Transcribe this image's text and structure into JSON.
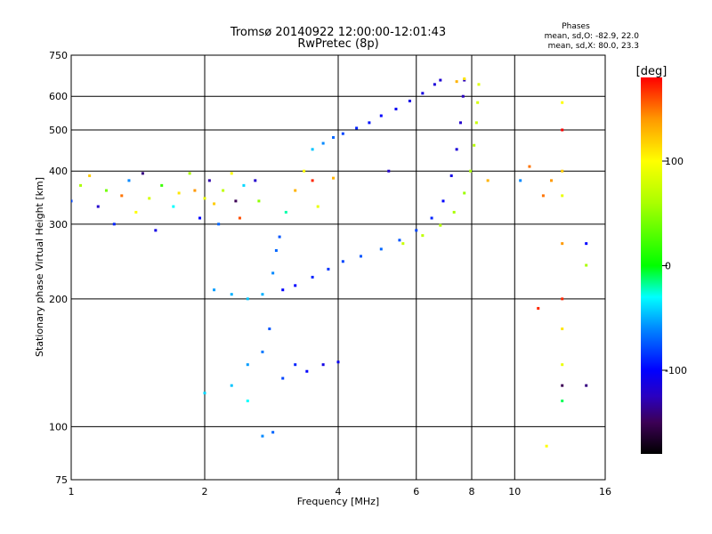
{
  "title_line1": "Tromsø 20140922 12:00:00-12:01:43",
  "title_line2": "RwPretec (8p)",
  "phases_box": {
    "heading": "Phases",
    "line_o": "mean, sd,O: -82.9, 22.0",
    "line_x": "mean, sd,X: 80.0, 23.3"
  },
  "colorbar": {
    "label": "[deg]",
    "range": [
      -180,
      180
    ],
    "ticks": [
      {
        "value": 100,
        "label": "100"
      },
      {
        "value": 0,
        "label": "0"
      },
      {
        "value": -100,
        "label": "-100"
      }
    ],
    "stops": [
      {
        "value": -180,
        "color": "#000000"
      },
      {
        "value": -150,
        "color": "#3c0055"
      },
      {
        "value": -125,
        "color": "#2a00c0"
      },
      {
        "value": -100,
        "color": "#0000ff"
      },
      {
        "value": -60,
        "color": "#0088ff"
      },
      {
        "value": -30,
        "color": "#00ffff"
      },
      {
        "value": 0,
        "color": "#00ff00"
      },
      {
        "value": 60,
        "color": "#aaff00"
      },
      {
        "value": 100,
        "color": "#ffff00"
      },
      {
        "value": 140,
        "color": "#ff9900"
      },
      {
        "value": 180,
        "color": "#ff0000"
      }
    ]
  },
  "chart_data": {
    "type": "scatter",
    "title": "Tromsø 20140922 12:00:00-12:01:43",
    "subtitle": "RwPretec (8p)",
    "xlabel": "Frequency [MHz]",
    "ylabel": "Stationary phase Virtual Height [km]",
    "x_scale": "log",
    "y_scale": "log",
    "xlim": [
      1,
      16
    ],
    "ylim": [
      75,
      750
    ],
    "grid": true,
    "x_ticks": [
      {
        "value": 1,
        "label": "1"
      },
      {
        "value": 2,
        "label": "2"
      },
      {
        "value": 4,
        "label": "4"
      },
      {
        "value": 6,
        "label": "6"
      },
      {
        "value": 8,
        "label": "8"
      },
      {
        "value": 10,
        "label": "10"
      },
      {
        "value": 16,
        "label": "16"
      }
    ],
    "y_ticks": [
      {
        "value": 75,
        "label": "75"
      },
      {
        "value": 100,
        "label": "100"
      },
      {
        "value": 200,
        "label": "200"
      },
      {
        "value": 300,
        "label": "300"
      },
      {
        "value": 400,
        "label": "400"
      },
      {
        "value": 500,
        "label": "500"
      },
      {
        "value": 600,
        "label": "600"
      },
      {
        "value": 750,
        "label": "750"
      }
    ],
    "color_dimension": "phase [deg]",
    "series": [
      {
        "points": [
          [
            3.5,
            450,
            -45
          ],
          [
            3.7,
            465,
            -60
          ],
          [
            3.9,
            480,
            -70
          ],
          [
            4.1,
            490,
            -80
          ],
          [
            4.4,
            505,
            -90
          ],
          [
            4.7,
            520,
            -95
          ],
          [
            5.0,
            540,
            -100
          ],
          [
            5.4,
            560,
            -105
          ],
          [
            5.8,
            585,
            -110
          ],
          [
            6.2,
            610,
            -112
          ],
          [
            6.6,
            640,
            -115
          ],
          [
            6.8,
            655,
            -118
          ]
        ]
      },
      {
        "points": [
          [
            2.1,
            210,
            -55
          ],
          [
            2.3,
            205,
            -50
          ],
          [
            2.5,
            200,
            -45
          ],
          [
            2.7,
            205,
            -50
          ],
          [
            2.85,
            230,
            -60
          ],
          [
            2.9,
            260,
            -70
          ],
          [
            2.95,
            280,
            -75
          ],
          [
            3.0,
            210,
            -100
          ],
          [
            3.2,
            215,
            -100
          ],
          [
            3.5,
            225,
            -90
          ],
          [
            3.8,
            235,
            -85
          ],
          [
            4.1,
            245,
            -80
          ],
          [
            4.5,
            252,
            -75
          ],
          [
            5.0,
            262,
            -70
          ],
          [
            5.5,
            275,
            -75
          ],
          [
            6.0,
            290,
            -80
          ],
          [
            6.5,
            310,
            -90
          ],
          [
            6.9,
            340,
            -100
          ],
          [
            7.2,
            390,
            -110
          ],
          [
            7.4,
            450,
            -115
          ],
          [
            7.55,
            520,
            -120
          ],
          [
            7.65,
            600,
            -125
          ],
          [
            7.7,
            655,
            -125
          ]
        ]
      },
      {
        "points": [
          [
            5.6,
            270,
            75
          ],
          [
            6.2,
            282,
            70
          ],
          [
            6.8,
            298,
            65
          ],
          [
            7.3,
            320,
            60
          ],
          [
            7.7,
            355,
            55
          ],
          [
            7.95,
            400,
            60
          ],
          [
            8.1,
            460,
            65
          ],
          [
            8.2,
            520,
            75
          ],
          [
            8.25,
            580,
            80
          ],
          [
            8.3,
            640,
            85
          ],
          [
            7.4,
            650,
            130
          ],
          [
            7.7,
            660,
            110
          ]
        ]
      },
      {
        "points": [
          [
            2.0,
            120,
            -40
          ],
          [
            2.3,
            125,
            -45
          ],
          [
            2.5,
            140,
            -55
          ],
          [
            2.7,
            150,
            -65
          ],
          [
            2.8,
            170,
            -75
          ],
          [
            3.0,
            130,
            -80
          ],
          [
            3.2,
            140,
            -90
          ],
          [
            3.4,
            135,
            -100
          ],
          [
            3.7,
            140,
            -110
          ],
          [
            4.0,
            142,
            -105
          ],
          [
            2.5,
            115,
            -30
          ],
          [
            2.7,
            95,
            -60
          ],
          [
            2.85,
            97,
            -70
          ]
        ]
      },
      {
        "points": [
          [
            1.0,
            340,
            -80
          ],
          [
            1.05,
            370,
            60
          ],
          [
            1.1,
            390,
            120
          ],
          [
            1.15,
            330,
            -120
          ],
          [
            1.2,
            360,
            40
          ],
          [
            1.25,
            300,
            -90
          ],
          [
            1.3,
            350,
            150
          ],
          [
            1.35,
            380,
            -60
          ],
          [
            1.4,
            320,
            100
          ],
          [
            1.45,
            395,
            -140
          ],
          [
            1.5,
            345,
            80
          ],
          [
            1.55,
            290,
            -110
          ],
          [
            1.6,
            370,
            20
          ],
          [
            1.7,
            330,
            -30
          ],
          [
            1.75,
            355,
            110
          ],
          [
            1.85,
            395,
            60
          ],
          [
            1.9,
            360,
            140
          ],
          [
            1.95,
            310,
            -100
          ],
          [
            2.0,
            345,
            90
          ],
          [
            2.05,
            380,
            -130
          ],
          [
            2.1,
            335,
            120
          ],
          [
            2.15,
            300,
            -70
          ],
          [
            2.2,
            360,
            70
          ],
          [
            2.3,
            395,
            100
          ],
          [
            2.35,
            340,
            -150
          ],
          [
            2.4,
            310,
            160
          ],
          [
            2.45,
            370,
            -40
          ],
          [
            2.6,
            380,
            -120
          ],
          [
            2.65,
            340,
            50
          ]
        ]
      },
      {
        "points": [
          [
            3.05,
            320,
            -20
          ],
          [
            3.2,
            360,
            130
          ],
          [
            3.35,
            400,
            100
          ],
          [
            3.5,
            380,
            170
          ],
          [
            3.6,
            330,
            90
          ],
          [
            3.9,
            385,
            130
          ],
          [
            5.2,
            400,
            -120
          ],
          [
            8.7,
            380,
            130
          ],
          [
            10.3,
            380,
            -60
          ],
          [
            10.8,
            410,
            150
          ],
          [
            11.3,
            190,
            170
          ],
          [
            11.6,
            350,
            150
          ],
          [
            11.8,
            90,
            100
          ],
          [
            12.1,
            380,
            140
          ],
          [
            12.8,
            580,
            100
          ],
          [
            12.8,
            500,
            180
          ],
          [
            12.8,
            400,
            120
          ],
          [
            12.8,
            350,
            90
          ],
          [
            12.8,
            270,
            140
          ],
          [
            12.8,
            200,
            170
          ],
          [
            12.8,
            170,
            110
          ],
          [
            12.8,
            140,
            90
          ],
          [
            12.8,
            125,
            -150
          ],
          [
            12.8,
            115,
            -10
          ],
          [
            14.5,
            270,
            -100
          ],
          [
            14.5,
            240,
            60
          ],
          [
            14.5,
            125,
            -140
          ]
        ]
      }
    ]
  }
}
